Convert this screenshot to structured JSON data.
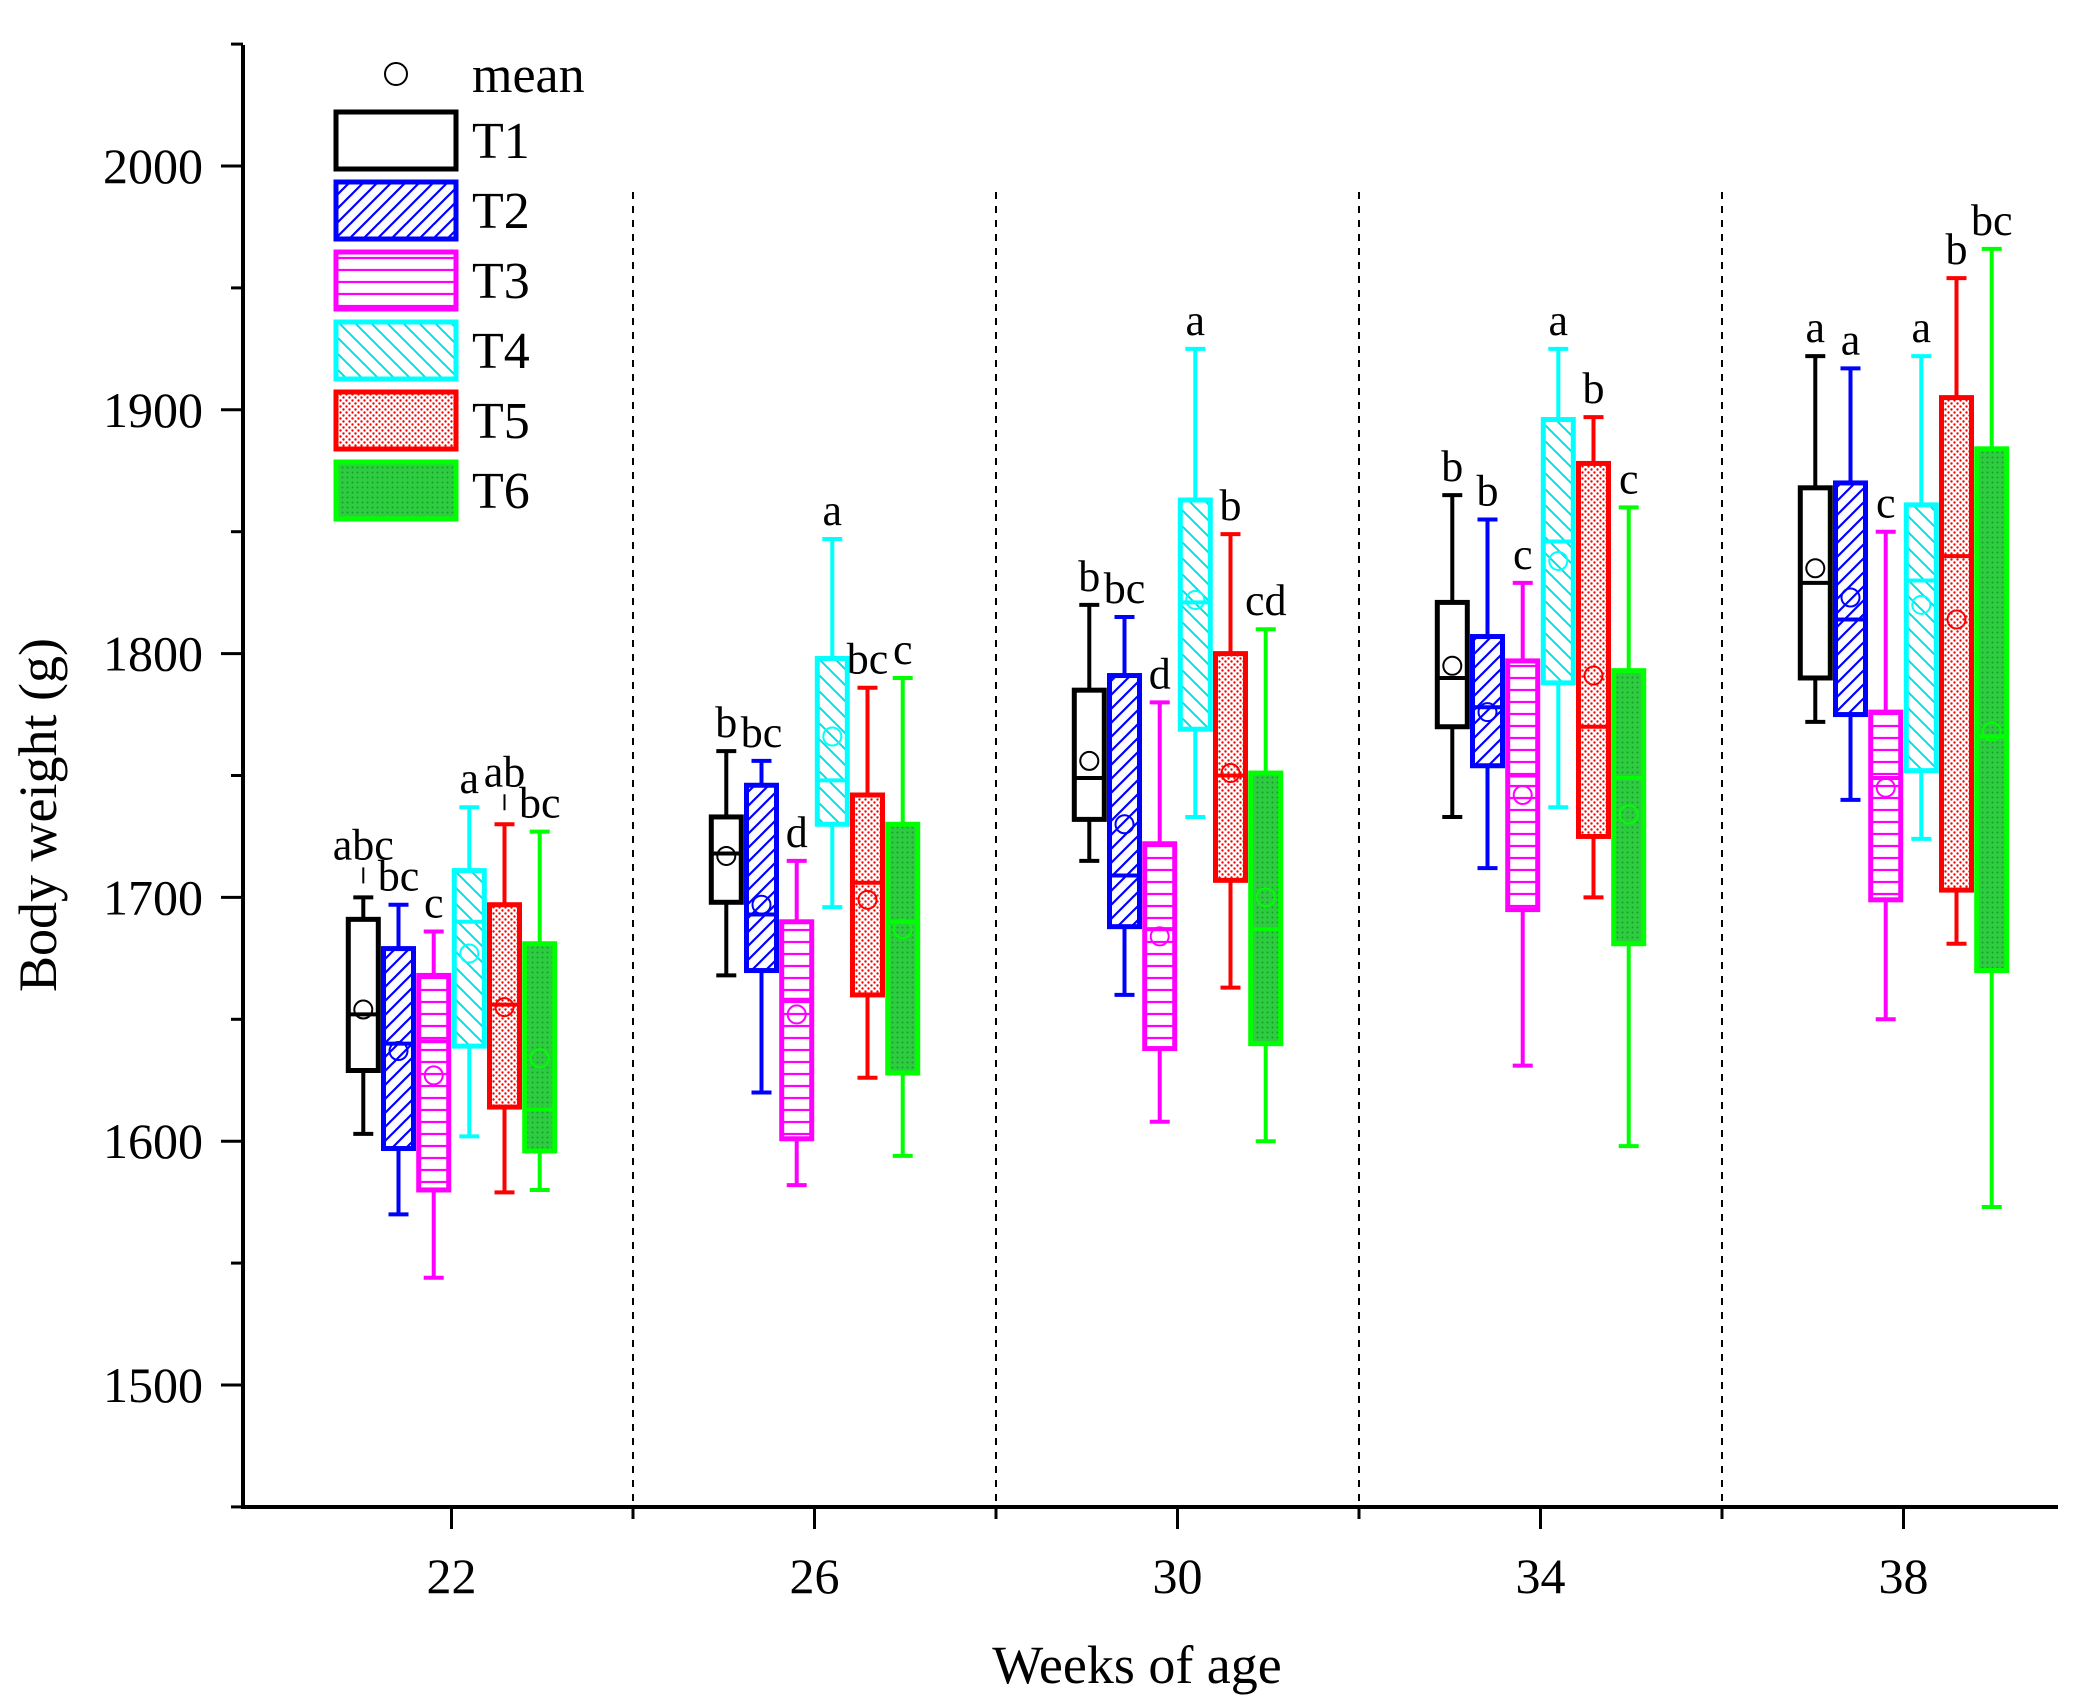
{
  "chart_data": {
    "type": "box",
    "xlabel": "Weeks of age",
    "ylabel": "Body weight (g)",
    "ylim": [
      1450,
      2050
    ],
    "yticks": [
      1500,
      1600,
      1700,
      1800,
      1900,
      2000
    ],
    "categories": [
      "22",
      "26",
      "30",
      "34",
      "38"
    ],
    "legend": {
      "position": "top-left",
      "mean_label": "mean",
      "entries": [
        "T1",
        "T2",
        "T3",
        "T4",
        "T5",
        "T6"
      ]
    },
    "series": [
      {
        "name": "T1",
        "color": "#000000",
        "pattern": "none",
        "boxes": [
          {
            "whisker_low": 1603,
            "q1": 1629,
            "median": 1652,
            "q3": 1691,
            "whisker_high": 1700,
            "mean": 1654,
            "label": "abc"
          },
          {
            "whisker_low": 1668,
            "q1": 1698,
            "median": 1718,
            "q3": 1733,
            "whisker_high": 1760,
            "mean": 1717,
            "label": "b"
          },
          {
            "whisker_low": 1715,
            "q1": 1732,
            "median": 1749,
            "q3": 1785,
            "whisker_high": 1820,
            "mean": 1756,
            "label": "b"
          },
          {
            "whisker_low": 1733,
            "q1": 1770,
            "median": 1790,
            "q3": 1821,
            "whisker_high": 1865,
            "mean": 1795,
            "label": "b"
          },
          {
            "whisker_low": 1772,
            "q1": 1790,
            "median": 1829,
            "q3": 1868,
            "whisker_high": 1922,
            "mean": 1835,
            "label": "a"
          }
        ]
      },
      {
        "name": "T2",
        "color": "#0000ff",
        "pattern": "diag-right",
        "boxes": [
          {
            "whisker_low": 1570,
            "q1": 1597,
            "median": 1640,
            "q3": 1679,
            "whisker_high": 1697,
            "mean": 1637,
            "label": "bc"
          },
          {
            "whisker_low": 1620,
            "q1": 1670,
            "median": 1693,
            "q3": 1746,
            "whisker_high": 1756,
            "mean": 1697,
            "label": "bc"
          },
          {
            "whisker_low": 1660,
            "q1": 1688,
            "median": 1709,
            "q3": 1791,
            "whisker_high": 1815,
            "mean": 1730,
            "label": "bc"
          },
          {
            "whisker_low": 1712,
            "q1": 1754,
            "median": 1778,
            "q3": 1807,
            "whisker_high": 1855,
            "mean": 1776,
            "label": "b"
          },
          {
            "whisker_low": 1740,
            "q1": 1775,
            "median": 1814,
            "q3": 1870,
            "whisker_high": 1917,
            "mean": 1823,
            "label": "a"
          }
        ]
      },
      {
        "name": "T3",
        "color": "#ff00ff",
        "pattern": "horizontal",
        "boxes": [
          {
            "whisker_low": 1544,
            "q1": 1580,
            "median": 1641,
            "q3": 1668,
            "whisker_high": 1686,
            "mean": 1627,
            "label": "c"
          },
          {
            "whisker_low": 1582,
            "q1": 1601,
            "median": 1658,
            "q3": 1690,
            "whisker_high": 1715,
            "mean": 1652,
            "label": "d"
          },
          {
            "whisker_low": 1608,
            "q1": 1638,
            "median": 1687,
            "q3": 1722,
            "whisker_high": 1780,
            "mean": 1684,
            "label": "d"
          },
          {
            "whisker_low": 1631,
            "q1": 1695,
            "median": 1750,
            "q3": 1797,
            "whisker_high": 1829,
            "mean": 1742,
            "label": "c"
          },
          {
            "whisker_low": 1650,
            "q1": 1699,
            "median": 1749,
            "q3": 1776,
            "whisker_high": 1850,
            "mean": 1745,
            "label": "c"
          }
        ]
      },
      {
        "name": "T4",
        "color": "#00ffff",
        "pattern": "diag-left",
        "boxes": [
          {
            "whisker_low": 1602,
            "q1": 1639,
            "median": 1690,
            "q3": 1711,
            "whisker_high": 1737,
            "mean": 1677,
            "label": "a"
          },
          {
            "whisker_low": 1696,
            "q1": 1730,
            "median": 1748,
            "q3": 1798,
            "whisker_high": 1847,
            "mean": 1766,
            "label": "a"
          },
          {
            "whisker_low": 1733,
            "q1": 1769,
            "median": 1821,
            "q3": 1863,
            "whisker_high": 1925,
            "mean": 1822,
            "label": "a"
          },
          {
            "whisker_low": 1737,
            "q1": 1788,
            "median": 1846,
            "q3": 1896,
            "whisker_high": 1925,
            "mean": 1838,
            "label": "a"
          },
          {
            "whisker_low": 1724,
            "q1": 1752,
            "median": 1830,
            "q3": 1861,
            "whisker_high": 1922,
            "mean": 1820,
            "label": "a"
          }
        ]
      },
      {
        "name": "T5",
        "color": "#ff0000",
        "pattern": "dots",
        "boxes": [
          {
            "whisker_low": 1579,
            "q1": 1614,
            "median": 1656,
            "q3": 1697,
            "whisker_high": 1730,
            "mean": 1655,
            "label": "ab"
          },
          {
            "whisker_low": 1626,
            "q1": 1660,
            "median": 1706,
            "q3": 1742,
            "whisker_high": 1786,
            "mean": 1699,
            "label": "bc"
          },
          {
            "whisker_low": 1663,
            "q1": 1707,
            "median": 1750,
            "q3": 1800,
            "whisker_high": 1849,
            "mean": 1751,
            "label": "b"
          },
          {
            "whisker_low": 1700,
            "q1": 1725,
            "median": 1770,
            "q3": 1878,
            "whisker_high": 1897,
            "mean": 1791,
            "label": "b"
          },
          {
            "whisker_low": 1681,
            "q1": 1703,
            "median": 1840,
            "q3": 1905,
            "whisker_high": 1954,
            "mean": 1814,
            "label": "b"
          }
        ]
      },
      {
        "name": "T6",
        "color": "#00ff00",
        "pattern": "solid",
        "boxes": [
          {
            "whisker_low": 1580,
            "q1": 1596,
            "median": 1613,
            "q3": 1681,
            "whisker_high": 1727,
            "mean": 1634,
            "label": "bc"
          },
          {
            "whisker_low": 1594,
            "q1": 1628,
            "median": 1690,
            "q3": 1730,
            "whisker_high": 1790,
            "mean": 1687,
            "label": "c"
          },
          {
            "whisker_low": 1600,
            "q1": 1640,
            "median": 1687,
            "q3": 1751,
            "whisker_high": 1810,
            "mean": 1700,
            "label": "cd"
          },
          {
            "whisker_low": 1598,
            "q1": 1681,
            "median": 1749,
            "q3": 1793,
            "whisker_high": 1860,
            "mean": 1734,
            "label": "c"
          },
          {
            "whisker_low": 1573,
            "q1": 1670,
            "median": 1766,
            "q3": 1884,
            "whisker_high": 1966,
            "mean": 1768,
            "label": "bc"
          }
        ]
      }
    ],
    "annotations": {
      "separator_leaders": [
        {
          "category": "22",
          "series": "T1"
        },
        {
          "category": "22",
          "series": "T5"
        }
      ]
    }
  }
}
